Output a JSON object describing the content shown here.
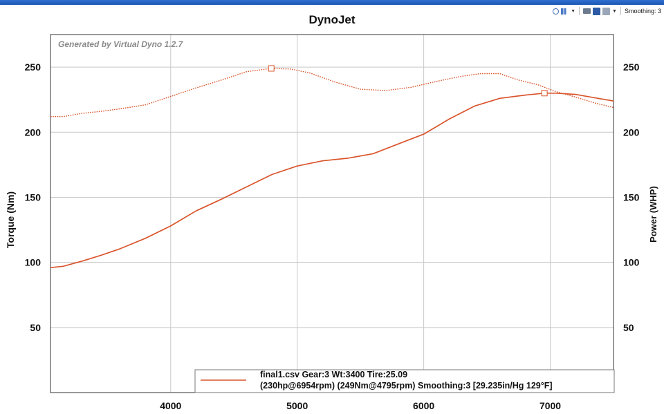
{
  "toolbar": {
    "icons": [
      "zoom-icon",
      "chart-type-icon",
      "print-icon",
      "save-icon",
      "copy-icon"
    ],
    "smoothing_label": "Smoothing: 3"
  },
  "chart_data": {
    "type": "line",
    "title": "DynoJet",
    "watermark": "Generated by Virtual Dyno 1.2.7",
    "xlabel": "",
    "ylabel": "Torque (Nm)",
    "y2label": "Power (WHP)",
    "xlim": [
      3050,
      7500
    ],
    "ylim": [
      0,
      275
    ],
    "y2lim": [
      0,
      275
    ],
    "x_ticks": [
      4000,
      5000,
      6000,
      7000
    ],
    "y_ticks": [
      50,
      100,
      150,
      200,
      250
    ],
    "y2_ticks": [
      50,
      100,
      150,
      200,
      250
    ],
    "grid": true,
    "legend": {
      "placement": "bottom-right",
      "line1": "final1.csv Gear:3 Wt:3400 Tire:25.09",
      "line2": "(230hp@6954rpm) (249Nm@4795rpm) Smoothing:3 [29.235in/Hg 129°F]"
    },
    "colors": {
      "series": "#d9542b",
      "grid": "#c8c8c8",
      "axis": "#333333",
      "watermark": "#8a8a8a"
    },
    "series": [
      {
        "style": "dotted",
        "axis": "left",
        "peak_marker": [
          4795,
          249
        ],
        "x": [
          3050,
          3150,
          3300,
          3450,
          3600,
          3800,
          4000,
          4200,
          4400,
          4600,
          4795,
          4950,
          5100,
          5300,
          5500,
          5700,
          5900,
          6100,
          6300,
          6450,
          6600,
          6750,
          6900,
          7050,
          7200,
          7350,
          7500
        ],
        "y": [
          212,
          212,
          214.5,
          216,
          218,
          221,
          227.5,
          234,
          240,
          246.5,
          249,
          248.5,
          245.5,
          238.5,
          233,
          232,
          234.5,
          239,
          243,
          245,
          245,
          240,
          236.5,
          231,
          227,
          222.5,
          219
        ]
      },
      {
        "style": "solid",
        "axis": "right",
        "peak_marker": [
          6954,
          230
        ],
        "x": [
          3050,
          3150,
          3300,
          3450,
          3600,
          3800,
          4000,
          4200,
          4400,
          4600,
          4800,
          5000,
          5200,
          5400,
          5600,
          5800,
          6000,
          6200,
          6400,
          6600,
          6800,
          6954,
          7050,
          7200,
          7350,
          7500
        ],
        "y": [
          96,
          97,
          101,
          105.5,
          110.5,
          118.5,
          128,
          139.5,
          148.5,
          158,
          167.5,
          174,
          178,
          180,
          183.5,
          191,
          198.5,
          210,
          220,
          226,
          228.5,
          230,
          230,
          229,
          226.5,
          224
        ]
      }
    ]
  }
}
